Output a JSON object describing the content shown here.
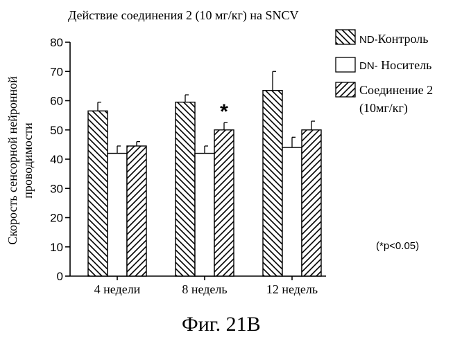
{
  "chart_data": {
    "type": "bar",
    "title": "Действие соединения 2 (10 мг/кг) на SNCV",
    "ylabel_line1": "Скорость сенсорной нейронной",
    "ylabel_line2": "проводимости",
    "xlabel": "",
    "categories": [
      "4 недели",
      "8 недель",
      "12 недель"
    ],
    "ylim": [
      0,
      80
    ],
    "yticks": [
      0,
      10,
      20,
      30,
      40,
      50,
      60,
      70,
      80
    ],
    "series": [
      {
        "name": "ND-Контроль",
        "legend_prefix": "ND-",
        "legend_text": "Контроль",
        "pattern": "back-hatch",
        "values": [
          56.5,
          59.5,
          63.5
        ],
        "errors": [
          3,
          2.5,
          6.5
        ]
      },
      {
        "name": "DN- Носитель",
        "legend_prefix": "DN-",
        "legend_text": " Носитель",
        "pattern": "none",
        "values": [
          42,
          42,
          44
        ],
        "errors": [
          2.5,
          2.5,
          3.5
        ]
      },
      {
        "name": "Соединение 2 (10мг/кг)",
        "legend_text": "Соединение 2",
        "legend_text2": "(10мг/кг)",
        "pattern": "forward-hatch",
        "values": [
          44.5,
          50,
          50
        ],
        "errors": [
          1.5,
          2.5,
          3
        ]
      }
    ],
    "annotations": [
      {
        "text": "*",
        "category_index": 1,
        "series_index": 2
      }
    ],
    "significance_note": "(*p<0.05)",
    "grid": false,
    "legend_position": "top-right"
  },
  "figure_caption": "Фиг. 21B",
  "colors": {
    "ink": "#000000",
    "background": "#ffffff"
  }
}
